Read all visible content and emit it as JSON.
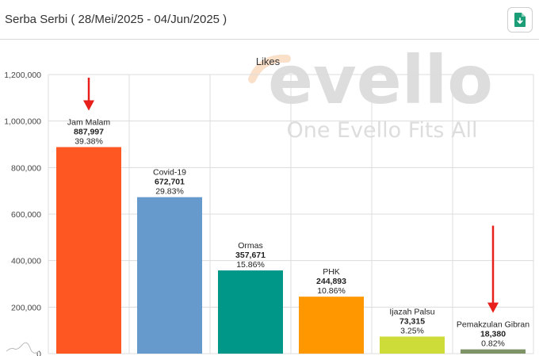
{
  "header": {
    "title": "Serba Serbi ( 28/Mei/2025 - 04/Jun/2025 )",
    "download_icon": "file-download-icon"
  },
  "watermark": {
    "brand": "evello",
    "tagline": "One Evello Fits All"
  },
  "colors": {
    "Jam Malam": "#ff5722",
    "Covid-19": "#6699cc",
    "Ormas": "#009688",
    "PHK": "#ff9800",
    "Ijazah Palsu": "#cddc39",
    "Pemakzulan Gibran": "#7e9466",
    "arrow": "#e8201b",
    "download_icon": "#1b9e77"
  },
  "chart_data": {
    "type": "bar",
    "title": "Likes",
    "xlabel": "",
    "ylabel": "",
    "ylim": [
      0,
      1200000
    ],
    "yticks": [
      0,
      200000,
      400000,
      600000,
      800000,
      1000000,
      1200000
    ],
    "ytick_labels": [
      "0",
      "200,000",
      "400,000",
      "600,000",
      "800,000",
      "1,000,000",
      "1,200,000"
    ],
    "grid": true,
    "categories": [
      "Jam Malam",
      "Covid-19",
      "Ormas",
      "PHK",
      "Ijazah Palsu",
      "Pemakzulan Gibran"
    ],
    "values": [
      887997,
      672701,
      357671,
      244893,
      73315,
      18380
    ],
    "value_labels": [
      "887,997",
      "672,701",
      "357,671",
      "244,893",
      "73,315",
      "18,380"
    ],
    "percent_labels": [
      "39.38%",
      "29.83%",
      "15.86%",
      "10.86%",
      "3.25%",
      "0.82%"
    ],
    "annotations": [
      {
        "type": "arrow",
        "target": "Jam Malam"
      },
      {
        "type": "arrow",
        "target": "Pemakzulan Gibran"
      }
    ]
  }
}
